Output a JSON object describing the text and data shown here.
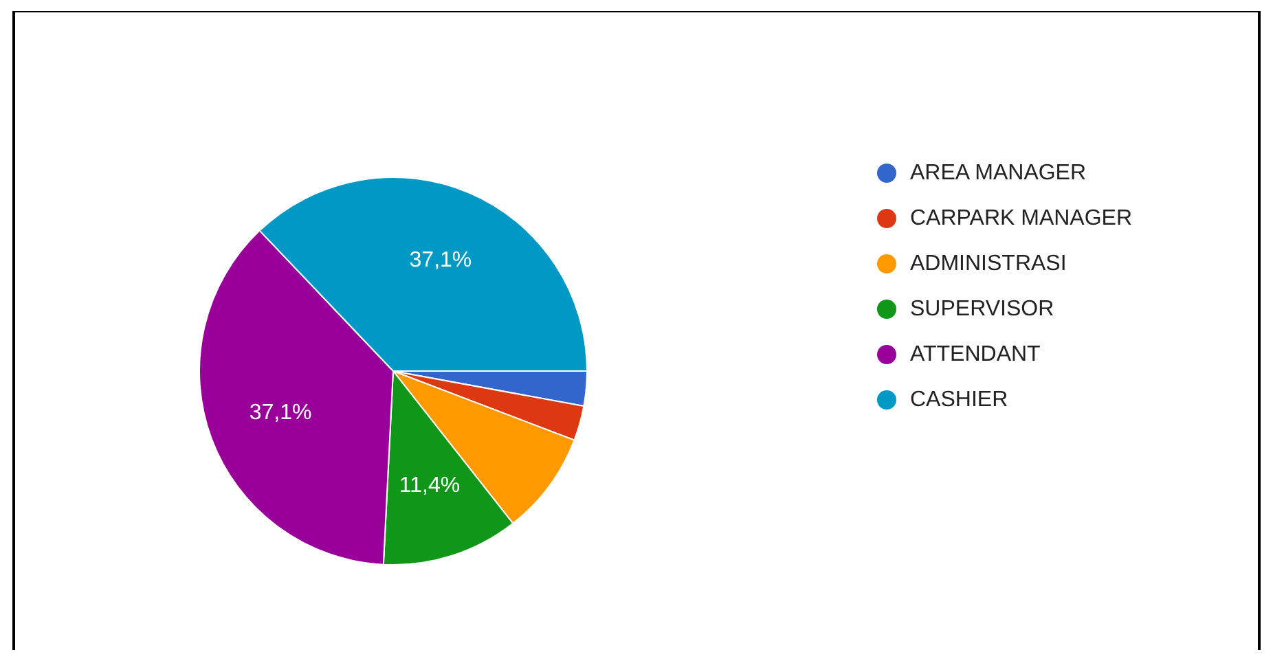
{
  "chart_data": {
    "type": "pie",
    "categories": [
      "AREA MANAGER",
      "CARPARK MANAGER",
      "ADMINISTRASI",
      "SUPERVISOR",
      "ATTENDANT",
      "CASHIER"
    ],
    "values": [
      2.9,
      2.9,
      8.6,
      11.4,
      37.1,
      37.1
    ],
    "colors": [
      "#3366cc",
      "#dc3912",
      "#ff9900",
      "#109618",
      "#990099",
      "#0099c6"
    ],
    "value_labels": [
      null,
      null,
      null,
      "11,4%",
      "37,1%",
      "37,1%"
    ],
    "legend": "right"
  }
}
